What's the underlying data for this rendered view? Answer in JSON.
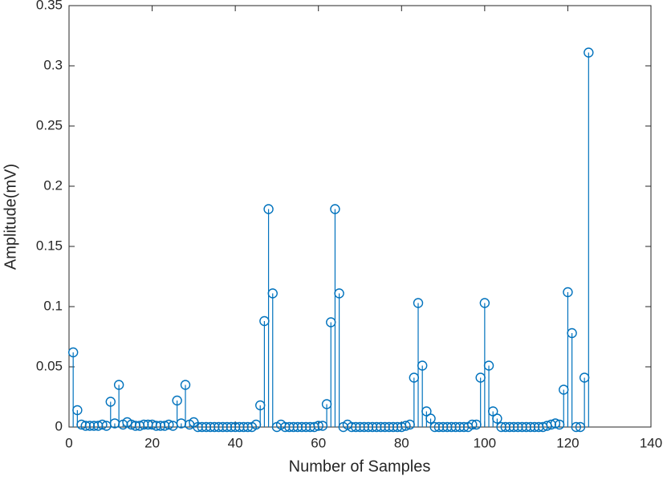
{
  "chart_data": {
    "type": "stem",
    "xlabel": "Number of Samples",
    "ylabel": "Amplitude(mV)",
    "color": "#0072bd",
    "xlim": [
      0,
      140
    ],
    "xticks": [
      0,
      20,
      40,
      60,
      80,
      100,
      120,
      140
    ],
    "ylim": [
      0,
      0.35
    ],
    "yticks": [
      0,
      0.05,
      0.1,
      0.15,
      0.2,
      0.25,
      0.3,
      0.35
    ],
    "x": [
      1,
      2,
      3,
      4,
      5,
      6,
      7,
      8,
      9,
      10,
      11,
      12,
      13,
      14,
      15,
      16,
      17,
      18,
      19,
      20,
      21,
      22,
      23,
      24,
      25,
      26,
      27,
      28,
      29,
      30,
      31,
      32,
      33,
      34,
      35,
      36,
      37,
      38,
      39,
      40,
      41,
      42,
      43,
      44,
      45,
      46,
      47,
      48,
      49,
      50,
      51,
      52,
      53,
      54,
      55,
      56,
      57,
      58,
      59,
      60,
      61,
      62,
      63,
      64,
      65,
      66,
      67,
      68,
      69,
      70,
      71,
      72,
      73,
      74,
      75,
      76,
      77,
      78,
      79,
      80,
      81,
      82,
      83,
      84,
      85,
      86,
      87,
      88,
      89,
      90,
      91,
      92,
      93,
      94,
      95,
      96,
      97,
      98,
      99,
      100,
      101,
      102,
      103,
      104,
      105,
      106,
      107,
      108,
      109,
      110,
      111,
      112,
      113,
      114,
      115,
      116,
      117,
      118,
      119,
      120,
      121,
      122,
      123,
      124,
      125
    ],
    "values": [
      0.062,
      0.014,
      0.002,
      0.001,
      0.001,
      0.001,
      0.001,
      0.002,
      0.001,
      0.021,
      0.003,
      0.035,
      0.002,
      0.004,
      0.002,
      0.001,
      0.001,
      0.002,
      0.002,
      0.002,
      0.001,
      0.001,
      0.001,
      0.002,
      0.001,
      0.022,
      0.003,
      0.035,
      0.002,
      0.004,
      0,
      0,
      0,
      0,
      0,
      0,
      0,
      0,
      0,
      0,
      0,
      0,
      0,
      0,
      0.002,
      0.018,
      0.088,
      0.181,
      0.111,
      0,
      0.002,
      0,
      0,
      0,
      0,
      0,
      0,
      0,
      0,
      0.001,
      0.001,
      0.019,
      0.087,
      0.181,
      0.111,
      0,
      0.002,
      0,
      0,
      0,
      0,
      0,
      0,
      0,
      0,
      0,
      0,
      0,
      0,
      0,
      0.001,
      0.002,
      0.041,
      0.103,
      0.051,
      0.013,
      0.007,
      0,
      0,
      0,
      0,
      0,
      0,
      0,
      0,
      0,
      0.002,
      0.002,
      0.041,
      0.103,
      0.051,
      0.013,
      0.007,
      0,
      0,
      0,
      0,
      0,
      0,
      0,
      0,
      0,
      0,
      0,
      0.001,
      0.002,
      0.003,
      0.002,
      0.031,
      0.112,
      0.078,
      0,
      0,
      0.041,
      0.311
    ]
  }
}
